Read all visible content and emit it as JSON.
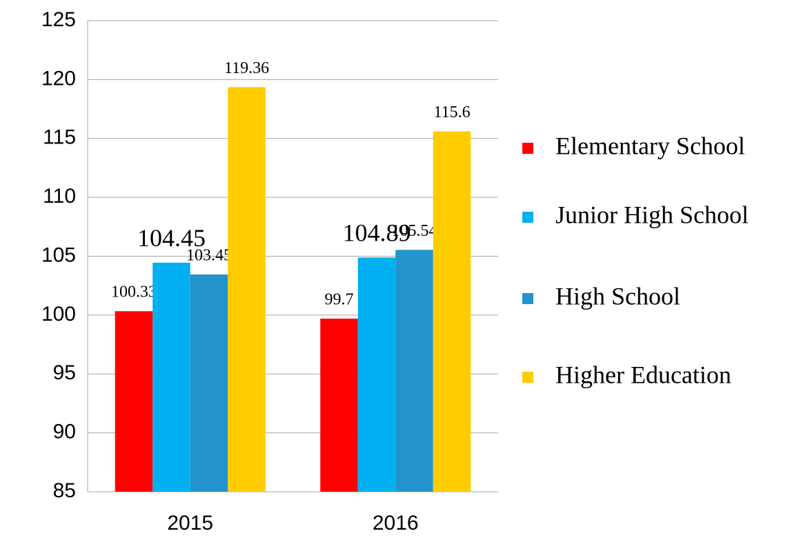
{
  "chart_data": {
    "type": "bar",
    "categories": [
      "2015",
      "2016"
    ],
    "series": [
      {
        "name": "Elementary School",
        "color": "#ff0000",
        "values": [
          100.33,
          99.7
        ]
      },
      {
        "name": "Junior High School",
        "color": "#00b0f0",
        "values": [
          104.45,
          104.89
        ]
      },
      {
        "name": "High School",
        "color": "#2393cd",
        "values": [
          103.45,
          105.54
        ]
      },
      {
        "name": "Higher Education",
        "color": "#ffcc00",
        "values": [
          119.36,
          115.6
        ]
      }
    ],
    "ylim": [
      85,
      125
    ],
    "yticks": [
      85,
      90,
      95,
      100,
      105,
      110,
      115,
      120,
      125
    ],
    "grid": true,
    "legend": "right"
  }
}
